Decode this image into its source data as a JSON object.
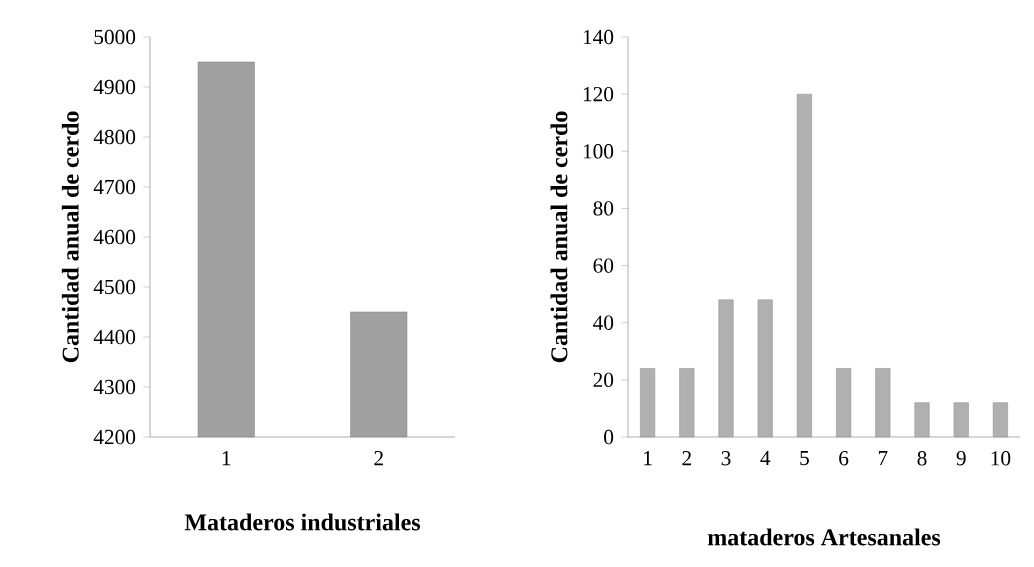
{
  "chart_data": [
    {
      "type": "bar",
      "categories": [
        "1",
        "2"
      ],
      "values": [
        4950,
        4450
      ],
      "color": "#a0a0a0",
      "ylim": [
        4200,
        5000
      ],
      "yticks": [
        4200,
        4300,
        4400,
        4500,
        4600,
        4700,
        4800,
        4900,
        5000
      ],
      "ylabel": "Cantidad anual de cerdo",
      "xlabel": "Mataderos industriales"
    },
    {
      "type": "bar",
      "categories": [
        "1",
        "2",
        "3",
        "4",
        "5",
        "6",
        "7",
        "8",
        "9",
        "10"
      ],
      "values": [
        24,
        24,
        48,
        48,
        120,
        24,
        24,
        12,
        12,
        12
      ],
      "color": "#b0b0b0",
      "ylim": [
        0,
        140
      ],
      "yticks": [
        0,
        20,
        40,
        60,
        80,
        100,
        120,
        140
      ],
      "ylabel": "Cantidad anual de cerdo",
      "xlabel": "mataderos Artesanales"
    }
  ]
}
